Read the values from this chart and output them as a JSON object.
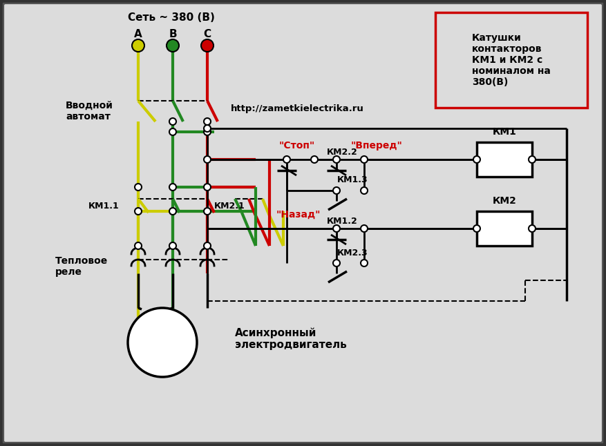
{
  "bg_color": "#c8c8c8",
  "inner_bg": "#dcdcdc",
  "red_color": "#cc0000",
  "yellow_color": "#cccc00",
  "green_color": "#228822",
  "net_label": "Сеть ~ 380 (В)",
  "vvodnoy_label": "Вводной\nавтомат",
  "km11_label": "КМ1.1",
  "km21_label": "КМ2.1",
  "teplovoe_label": "Тепловое\nреле",
  "motor_label": "Асинхронный\nэлектродвигатель",
  "stop_label": "\"Стоп\"",
  "vpered_label": "\"Вперед\"",
  "nazad_label": "\"Назад\"",
  "km22_label": "КМ2.2",
  "km13_label": "КМ1.3",
  "km12_label": "КМ1.2",
  "km23_label": "КМ2.3",
  "km1_label": "КМ1",
  "km2_label": "КМ2",
  "url_label": "http://zametkielectrika.ru",
  "box_label": "Катушки\nконтакторов\nКМ1 и КМ2 с\nноминалом на\n380(В)",
  "phases": [
    "А",
    "В",
    "С"
  ],
  "phase_colors": [
    "#cccc00",
    "#228822",
    "#cc0000"
  ]
}
